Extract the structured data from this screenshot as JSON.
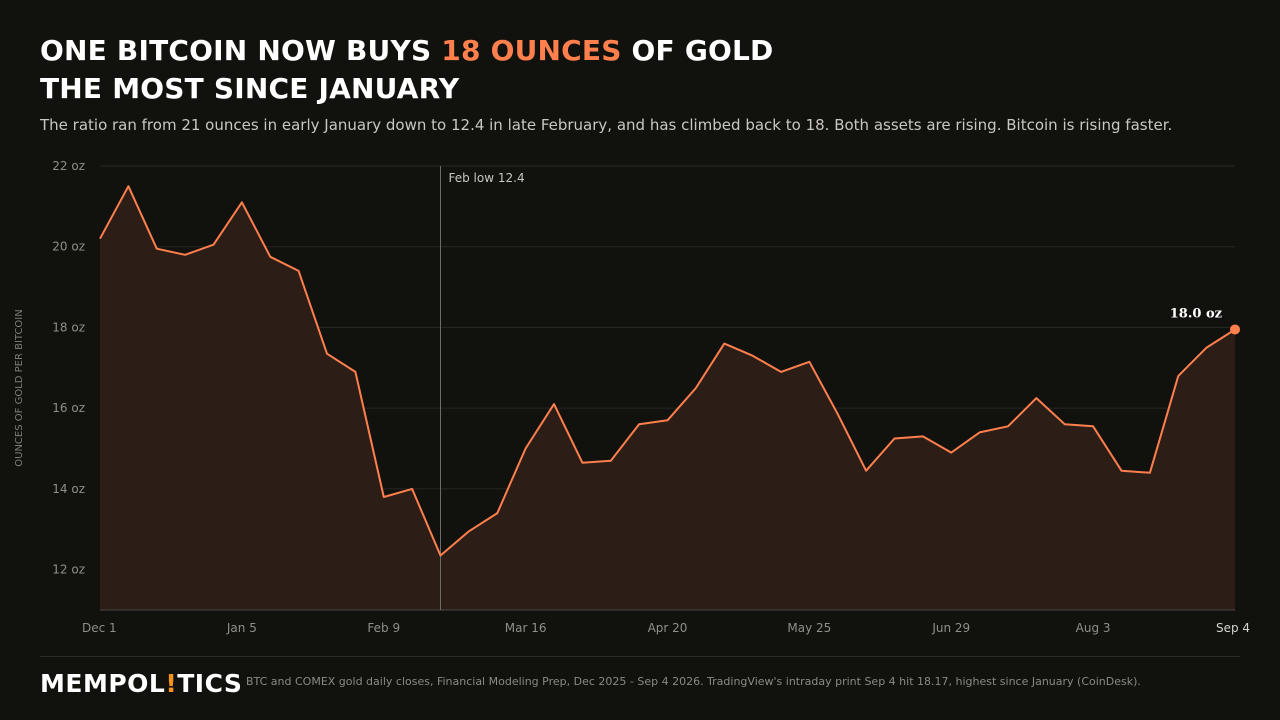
{
  "header": {
    "title_part1": "ONE BITCOIN NOW BUYS ",
    "title_highlight": "18 OUNCES",
    "title_part2": " OF GOLD",
    "title_line2": "THE MOST SINCE JANUARY",
    "subtitle": "The ratio ran from 21 ounces in early January down to 12.4 in late February, and has climbed back to 18. Both assets are rising. Bitcoin is rising faster."
  },
  "colors": {
    "background": "#11110e",
    "accent": "#ff7f4d",
    "area_fill": "#2c1e17",
    "grid": "#272622",
    "brand_bang": "#f7931a"
  },
  "chart_data": {
    "type": "area",
    "ylabel": "OUNCES OF GOLD PER BITCOIN",
    "ylim": [
      11,
      22
    ],
    "yticks": [
      12,
      14,
      16,
      18,
      20,
      22
    ],
    "ytick_labels": [
      "12 oz",
      "14 oz",
      "16 oz",
      "18 oz",
      "20 oz",
      "22 oz"
    ],
    "xticks": [
      "Dec 1",
      "Jan 5",
      "Feb 9",
      "Mar 16",
      "Apr 20",
      "May 25",
      "Jun 29",
      "Aug 3",
      "Sep 4"
    ],
    "grid": true,
    "series": [
      {
        "values": [
          20.2,
          21.5,
          19.95,
          19.8,
          20.05,
          21.1,
          19.75,
          19.4,
          17.35,
          16.9,
          13.8,
          14.0,
          12.35,
          12.95,
          13.4,
          15.0,
          16.1,
          14.65,
          14.7,
          15.6,
          15.7,
          16.5,
          17.6,
          17.3,
          16.9,
          17.15,
          15.85,
          14.45,
          15.25,
          15.3,
          14.9,
          15.4,
          15.55,
          16.25,
          15.6,
          15.55,
          14.45,
          14.4,
          16.8,
          17.5,
          17.95
        ]
      }
    ],
    "annotations": [
      {
        "text": "Feb low 12.4",
        "at_index": 12
      },
      {
        "text": "18.0 oz",
        "at_index": 40
      }
    ]
  },
  "footer": {
    "brand_part1": "MEMPOL",
    "brand_bang": "!",
    "brand_part2": "TICS",
    "source": "BTC and COMEX gold daily closes, Financial Modeling Prep, Dec 2025 - Sep 4 2026. TradingView's intraday print Sep 4 hit 18.17, highest since January (CoinDesk)."
  }
}
